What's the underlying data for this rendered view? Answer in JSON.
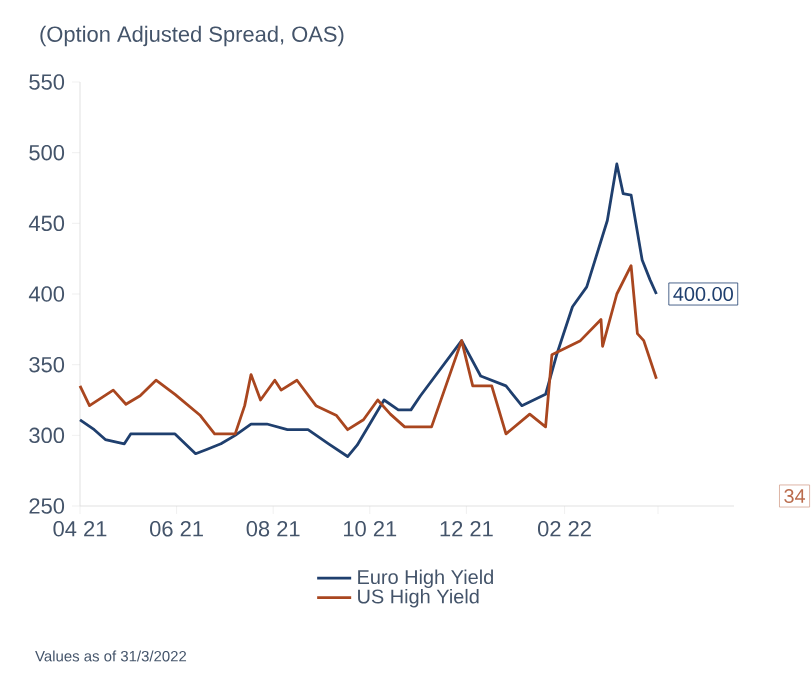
{
  "chart_data": {
    "type": "line",
    "title": "(Option Adjusted Spread, OAS)",
    "xlim": [
      "2021-04-01",
      "2022-05-19"
    ],
    "xticks": [
      {
        "value": "2021-04-01",
        "label": "04 21"
      },
      {
        "value": "2021-06-01",
        "label": "06 21"
      },
      {
        "value": "2021-08-01",
        "label": "08 21"
      },
      {
        "value": "2021-10-01",
        "label": "10 21"
      },
      {
        "value": "2021-12-01",
        "label": "12 21"
      },
      {
        "value": "2022-02-01",
        "label": "02 22"
      },
      {
        "value": "2022-04-01",
        "label": null
      }
    ],
    "ylim": [
      250,
      550
    ],
    "yticks": [
      250,
      300,
      350,
      400,
      450,
      500,
      550
    ],
    "grid": false,
    "legend": "bottom",
    "series": [
      {
        "name": "Euro High Yield",
        "color": "#1f3f6e",
        "x": [
          "2021-04-01",
          "2021-04-10",
          "2021-04-17",
          "2021-04-29",
          "2021-05-03",
          "2021-05-18",
          "2021-05-31",
          "2021-06-13",
          "2021-06-20",
          "2021-06-29",
          "2021-07-08",
          "2021-07-18",
          "2021-07-28",
          "2021-08-10",
          "2021-08-23",
          "2021-09-05",
          "2021-09-17",
          "2021-09-23",
          "2021-10-01",
          "2021-10-10",
          "2021-10-19",
          "2021-10-27",
          "2021-11-02",
          "2021-11-28",
          "2021-12-10",
          "2021-12-26",
          "2022-01-05",
          "2022-01-20",
          "2022-01-27",
          "2022-02-06",
          "2022-02-15",
          "2022-02-28",
          "2022-03-06",
          "2022-03-10",
          "2022-03-15",
          "2022-03-22",
          "2022-03-27",
          "2022-03-31"
        ],
        "values": [
          311,
          304,
          297,
          294,
          301,
          301,
          301,
          287,
          290,
          294,
          300,
          308,
          308,
          304,
          304,
          294,
          285,
          293,
          308,
          325,
          318,
          318,
          328,
          367,
          342,
          335,
          321,
          329,
          357,
          391,
          405,
          452,
          492,
          471,
          470,
          424,
          410,
          400
        ]
      },
      {
        "name": "US High Yield",
        "color": "#a9461f",
        "x": [
          "2021-04-01",
          "2021-04-07",
          "2021-04-22",
          "2021-04-30",
          "2021-05-09",
          "2021-05-19",
          "2021-05-31",
          "2021-06-16",
          "2021-06-25",
          "2021-07-08",
          "2021-07-14",
          "2021-07-18",
          "2021-07-24",
          "2021-08-02",
          "2021-08-06",
          "2021-08-16",
          "2021-08-28",
          "2021-09-10",
          "2021-09-17",
          "2021-09-27",
          "2021-10-06",
          "2021-10-14",
          "2021-10-23",
          "2021-11-09",
          "2021-11-28",
          "2021-12-05",
          "2021-12-17",
          "2021-12-26",
          "2022-01-10",
          "2022-01-20",
          "2022-01-24",
          "2022-02-11",
          "2022-02-24",
          "2022-02-25",
          "2022-03-06",
          "2022-03-15",
          "2022-03-19",
          "2022-03-23",
          "2022-03-31"
        ],
        "values": [
          335,
          321,
          332,
          322,
          328,
          339,
          329,
          314,
          301,
          301,
          321,
          343,
          325,
          339,
          332,
          339,
          321,
          314,
          304,
          311,
          325,
          315,
          306,
          306,
          367,
          335,
          335,
          301,
          315,
          306,
          357,
          367,
          382,
          363,
          400,
          420,
          372,
          367,
          340
        ]
      }
    ],
    "annotations": [
      {
        "text": "400.00",
        "x": "2022-03-31",
        "y": 400
      },
      "34",
      "Values as of 31/3/2022"
    ]
  }
}
